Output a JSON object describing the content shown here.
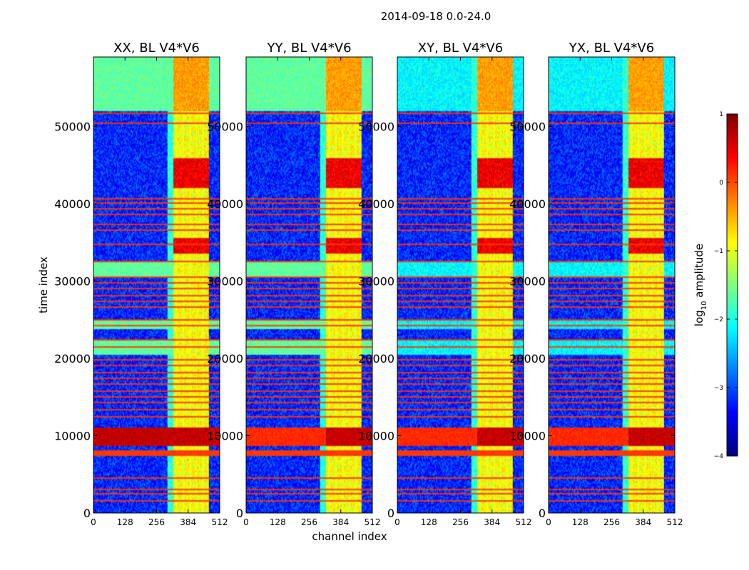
{
  "chart_data": {
    "type": "heatmap",
    "title": "2014-09-18 0.0-24.0",
    "xlabel": "channel index",
    "ylabel": "time index",
    "xlim": [
      0,
      512
    ],
    "ylim": [
      0,
      59000
    ],
    "x_ticks": [
      "0",
      "128",
      "256",
      "384",
      "512"
    ],
    "x_tick_values": [
      0,
      128,
      256,
      384,
      512
    ],
    "y_ticks": [
      "0",
      "10000",
      "20000",
      "30000",
      "40000",
      "50000"
    ],
    "y_tick_values": [
      0,
      10000,
      20000,
      30000,
      40000,
      50000
    ],
    "panels": [
      {
        "title": "XX, BL V4*V6"
      },
      {
        "title": "YY, BL V4*V6"
      },
      {
        "title": "XY, BL V4*V6"
      },
      {
        "title": "YX, BL V4*V6"
      }
    ],
    "colorbar": {
      "label": "log10 amplitude",
      "label_main": "log",
      "label_sub": "10",
      "label_rest": " amplitude",
      "vmin": -4,
      "vmax": 1,
      "ticks": [
        "−4",
        "−3",
        "−2",
        "−1",
        "0",
        "1"
      ],
      "tick_values": [
        -4,
        -3,
        -2,
        -1,
        0,
        1
      ],
      "colormap": "jet"
    },
    "features": {
      "background_level": -3.2,
      "rfi_band_channels": [
        325,
        470
      ],
      "saturated_band_time_ranges": [
        [
          7300,
          8200
        ],
        [
          8600,
          11000
        ],
        [
          33500,
          35500
        ],
        [
          42000,
          46000
        ]
      ],
      "flagged_time_rows": [
        1600,
        2400,
        3100,
        4600,
        12500,
        13300,
        14200,
        15000,
        15800,
        16600,
        17400,
        18200,
        19000,
        19800,
        21500,
        22400,
        24200,
        25000,
        26600,
        27400,
        28200,
        29000,
        29800,
        30500,
        32600,
        34800,
        36600,
        37400,
        38600,
        39400,
        40100,
        40600,
        50500,
        51800
      ],
      "elevated_time_ranges": [
        [
          30500,
          32600
        ],
        [
          20500,
          22500
        ],
        [
          23800,
          24800
        ],
        [
          52000,
          59000
        ]
      ]
    }
  }
}
